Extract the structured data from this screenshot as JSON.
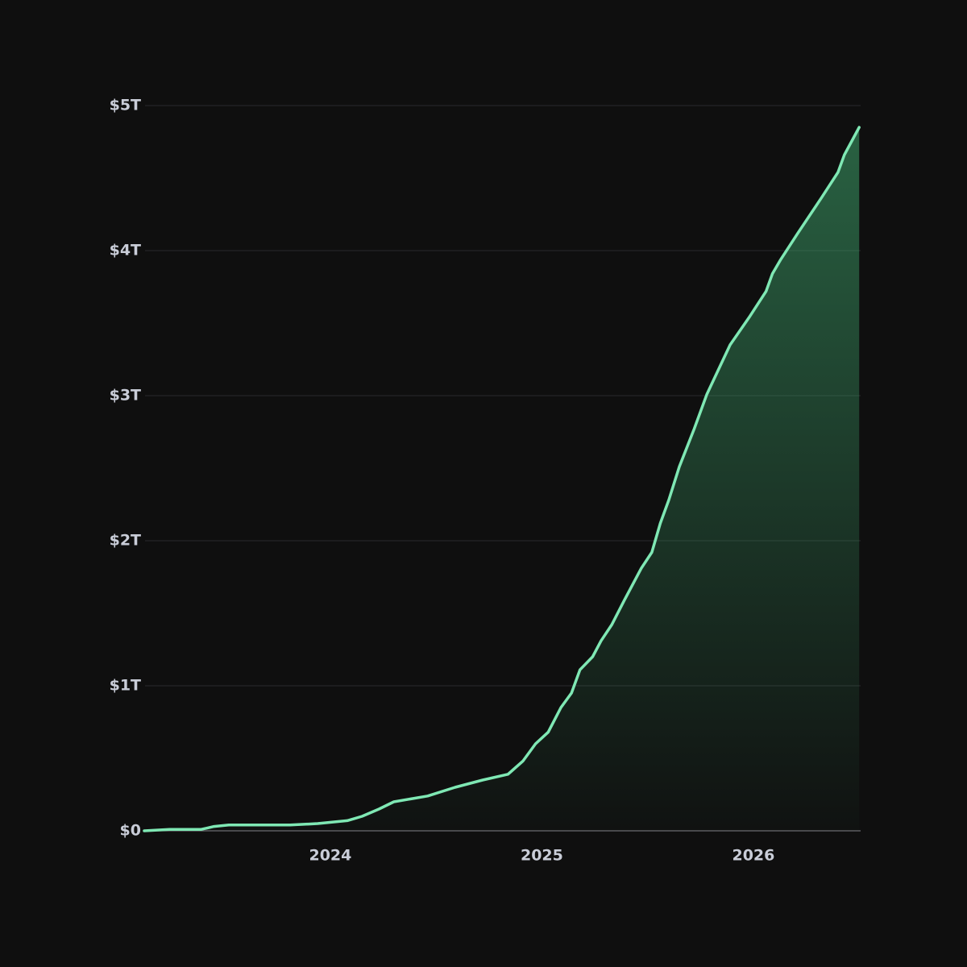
{
  "chart_data": {
    "type": "area",
    "x": [
      2023.12,
      2023.24,
      2023.39,
      2023.42,
      2023.45,
      2023.52,
      2023.81,
      2023.94,
      2024.08,
      2024.15,
      2024.23,
      2024.3,
      2024.46,
      2024.59,
      2024.72,
      2024.84,
      2024.91,
      2024.97,
      2025.03,
      2025.09,
      2025.14,
      2025.18,
      2025.24,
      2025.28,
      2025.33,
      2025.39,
      2025.47,
      2025.52,
      2025.56,
      2025.6,
      2025.65,
      2025.72,
      2025.78,
      2025.89,
      2025.98,
      2026.06,
      2026.09,
      2026.13,
      2026.21,
      2026.32,
      2026.4,
      2026.43,
      2026.5
    ],
    "series": [
      {
        "color": "#7fe8b4",
        "values": [
          0,
          0.01,
          0.01,
          0.02,
          0.03,
          0.04,
          0.04,
          0.05,
          0.07,
          0.1,
          0.15,
          0.2,
          0.24,
          0.3,
          0.35,
          0.39,
          0.48,
          0.6,
          0.68,
          0.85,
          0.95,
          1.11,
          1.2,
          1.31,
          1.42,
          1.59,
          1.81,
          1.92,
          2.12,
          2.28,
          2.51,
          2.77,
          3.01,
          3.35,
          3.54,
          3.72,
          3.84,
          3.94,
          4.12,
          4.36,
          4.54,
          4.66,
          4.85
        ]
      }
    ],
    "xlim": [
      2023.124,
      2026.507
    ],
    "xticks": [
      2024,
      2025,
      2026
    ],
    "ylim": [
      0,
      5
    ],
    "yticks": [
      {
        "value": 0,
        "label": "$0"
      },
      {
        "value": 1,
        "label": "$1T"
      },
      {
        "value": 2,
        "label": "$2T"
      },
      {
        "value": 3,
        "label": "$3T"
      },
      {
        "value": 4,
        "label": "$4T"
      },
      {
        "value": 5,
        "label": "$5T"
      }
    ],
    "grid": true
  }
}
